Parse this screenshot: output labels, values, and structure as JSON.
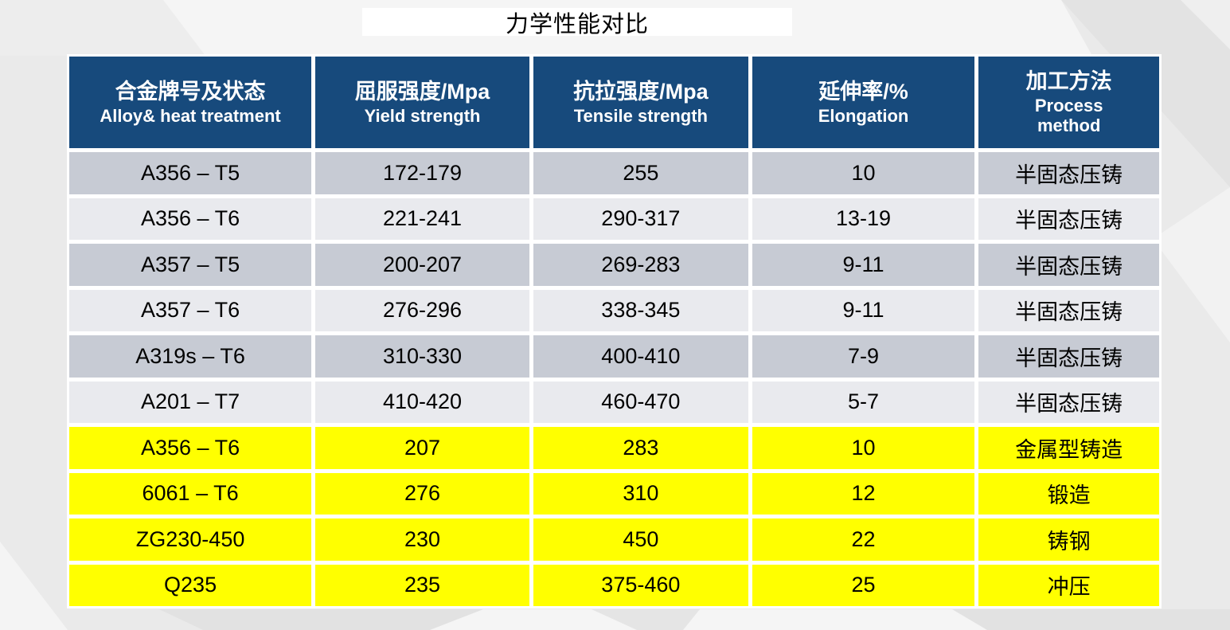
{
  "title": "力学性能对比",
  "table": {
    "headers": [
      {
        "cn": "合金牌号及状态",
        "en": "Alloy& heat treatment"
      },
      {
        "cn": "屈服强度/Mpa",
        "en": "Yield strength"
      },
      {
        "cn": "抗拉强度/Mpa",
        "en": "Tensile strength"
      },
      {
        "cn": "延伸率/%",
        "en": "Elongation"
      },
      {
        "cn": "加工方法",
        "en": "Process method"
      }
    ],
    "rows": [
      [
        "A356 – T5",
        "172-179",
        "255",
        "10",
        "半固态压铸"
      ],
      [
        "A356 – T6",
        "221-241",
        "290-317",
        "13-19",
        "半固态压铸"
      ],
      [
        "A357 – T5",
        "200-207",
        "269-283",
        "9-11",
        "半固态压铸"
      ],
      [
        "A357 – T6",
        "276-296",
        "338-345",
        "9-11",
        "半固态压铸"
      ],
      [
        "A319s – T6",
        "310-330",
        "400-410",
        "7-9",
        "半固态压铸"
      ],
      [
        "A201 – T7",
        "410-420",
        "460-470",
        "5-7",
        "半固态压铸"
      ],
      [
        "A356 – T6",
        "207",
        "283",
        "10",
        "金属型铸造"
      ],
      [
        "6061 – T6",
        "276",
        "310",
        "12",
        "锻造"
      ],
      [
        "ZG230-450",
        "230",
        "450",
        "22",
        "铸钢"
      ],
      [
        "Q235",
        "235",
        "375-460",
        "25",
        "冲压"
      ]
    ]
  },
  "colors": {
    "header_bg": "#174A7C",
    "row_dark": "#C7CBD4",
    "row_light": "#E9EAEE",
    "row_highlight": "#FFFF00",
    "cell_gap": "#FFFFFF",
    "text": "#000000"
  }
}
